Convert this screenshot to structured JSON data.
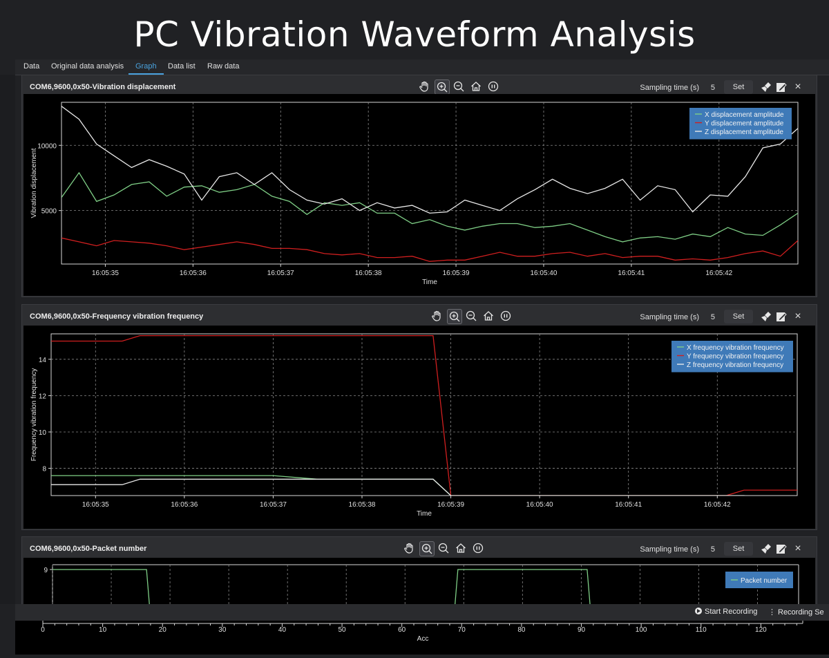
{
  "banner": {
    "title": "PC Vibration Waveform Analysis"
  },
  "tabs": [
    {
      "label": "Data"
    },
    {
      "label": "Original data analysis"
    },
    {
      "label": "Graph",
      "active": true
    },
    {
      "label": "Data list"
    },
    {
      "label": "Raw data"
    }
  ],
  "colors": {
    "accent": "#4aa3df",
    "x_series": "#7fcf86",
    "y_series": "#d11f1f",
    "z_series": "#e8e8e8",
    "legend_bg": "#3f7ab8"
  },
  "panels": [
    {
      "title": "COM6,9600,0x50-Vibration displacement",
      "sampling_label": "Sampling time (s)",
      "sampling_value": "5",
      "set_label": "Set",
      "close_label": "×"
    },
    {
      "title": "COM6,9600,0x50-Frequency vibration frequency",
      "sampling_label": "Sampling time (s)",
      "sampling_value": "5",
      "set_label": "Set",
      "close_label": "×"
    },
    {
      "title": "COM6,9600,0x50-Packet number",
      "sampling_label": "Sampling time (s)",
      "sampling_value": "5",
      "set_label": "Set",
      "close_label": "×"
    }
  ],
  "toolbar_icons": [
    "pan-hand-icon",
    "zoom-in-icon",
    "zoom-out-icon",
    "home-icon",
    "pause-icon"
  ],
  "panel_icons": [
    "brush-clear-icon",
    "edit-icon",
    "close-icon"
  ],
  "bottom_bar": {
    "start_recording": "Start Recording",
    "recording_settings": "Recording Se"
  },
  "chart_data": [
    {
      "type": "line",
      "title": "",
      "xlabel": "Time",
      "ylabel": "Vibration displacement",
      "x_ticks": [
        "16:05:35",
        "16:05:36",
        "16:05:37",
        "16:05:38",
        "16:05:39",
        "16:05:40",
        "16:05:41",
        "16:05:42"
      ],
      "y_ticks": [
        5000,
        10000
      ],
      "xlim": [
        "16:05:34.5",
        "16:05:42.9"
      ],
      "ylim": [
        900,
        13300
      ],
      "grid": true,
      "legend_position": "top-right",
      "x": [
        "16:05:34.5",
        "16:05:34.7",
        "16:05:34.9",
        "16:05:35.1",
        "16:05:35.3",
        "16:05:35.5",
        "16:05:35.7",
        "16:05:35.9",
        "16:05:36.1",
        "16:05:36.3",
        "16:05:36.5",
        "16:05:36.7",
        "16:05:36.9",
        "16:05:37.1",
        "16:05:37.3",
        "16:05:37.5",
        "16:05:37.7",
        "16:05:37.9",
        "16:05:38.1",
        "16:05:38.3",
        "16:05:38.5",
        "16:05:38.7",
        "16:05:38.9",
        "16:05:39.1",
        "16:05:39.3",
        "16:05:39.5",
        "16:05:39.7",
        "16:05:39.9",
        "16:05:40.1",
        "16:05:40.3",
        "16:05:40.5",
        "16:05:40.7",
        "16:05:40.9",
        "16:05:41.1",
        "16:05:41.3",
        "16:05:41.5",
        "16:05:41.7",
        "16:05:41.9",
        "16:05:42.1",
        "16:05:42.3",
        "16:05:42.5",
        "16:05:42.7",
        "16:05:42.9"
      ],
      "series": [
        {
          "name": "X displacement amplitude",
          "color": "#7fcf86",
          "values": [
            6000,
            7900,
            5700,
            6200,
            7000,
            7200,
            6100,
            6800,
            6900,
            6400,
            6600,
            7000,
            6100,
            5700,
            4700,
            5600,
            5400,
            5600,
            4800,
            4800,
            4000,
            4300,
            3800,
            3500,
            3800,
            4000,
            4000,
            3700,
            3800,
            4000,
            3500,
            3000,
            2600,
            2900,
            3000,
            2800,
            3200,
            3000,
            3700,
            3200,
            3100,
            3900,
            4800
          ]
        },
        {
          "name": "Y displacement amplitude",
          "color": "#d11f1f",
          "values": [
            2900,
            2600,
            2300,
            2700,
            2600,
            2500,
            2300,
            2000,
            2200,
            2400,
            2600,
            2400,
            2100,
            2100,
            2000,
            1700,
            1600,
            1700,
            1400,
            1400,
            1500,
            1100,
            1200,
            1200,
            1500,
            1800,
            1500,
            1500,
            1700,
            1800,
            1500,
            1700,
            1400,
            1500,
            1500,
            1200,
            1300,
            1200,
            1400,
            1700,
            1900,
            1500,
            2700
          ]
        },
        {
          "name": "Z displacement amplitude",
          "color": "#e8e8e8",
          "values": [
            13000,
            12000,
            10100,
            9200,
            8300,
            8900,
            8400,
            7800,
            5800,
            7600,
            7900,
            7000,
            7900,
            6600,
            5800,
            5500,
            5900,
            5000,
            5600,
            5200,
            5400,
            4800,
            4900,
            5800,
            5400,
            5000,
            5900,
            6600,
            7400,
            6700,
            6300,
            6700,
            7400,
            5800,
            6900,
            6600,
            4900,
            6200,
            6100,
            7600,
            9800,
            10100,
            11300
          ]
        }
      ]
    },
    {
      "type": "line",
      "title": "",
      "xlabel": "Time",
      "ylabel": "Frequency vibration frequency",
      "x_ticks": [
        "16:05:35",
        "16:05:36",
        "16:05:37",
        "16:05:38",
        "16:05:39",
        "16:05:40",
        "16:05:41",
        "16:05:42"
      ],
      "y_ticks": [
        8,
        10,
        12,
        14
      ],
      "xlim": [
        "16:05:34.5",
        "16:05:42.9"
      ],
      "ylim": [
        6.5,
        15.4
      ],
      "grid": true,
      "legend_position": "top-right",
      "x": [
        "16:05:34.5",
        "16:05:35.0",
        "16:05:35.3",
        "16:05:35.5",
        "16:05:35.7",
        "16:05:36.0",
        "16:05:36.5",
        "16:05:36.9",
        "16:05:37.0",
        "16:05:37.5",
        "16:05:38.0",
        "16:05:38.5",
        "16:05:38.8",
        "16:05:39.0",
        "16:05:39.5",
        "16:05:40.0",
        "16:05:41.0",
        "16:05:42.0",
        "16:05:42.1",
        "16:05:42.3",
        "16:05:42.5",
        "16:05:42.9"
      ],
      "series": [
        {
          "name": "X frequency vibration frequency",
          "color": "#7fcf86",
          "values": [
            7.6,
            7.6,
            7.6,
            7.6,
            7.6,
            7.6,
            7.6,
            7.6,
            7.6,
            7.4,
            7.4,
            7.4,
            7.4,
            6.5,
            6.5,
            6.5,
            6.5,
            6.5,
            6.5,
            6.4,
            6.3,
            6.3
          ]
        },
        {
          "name": "Y frequency vibration frequency",
          "color": "#d11f1f",
          "values": [
            15.0,
            15.0,
            15.0,
            15.3,
            15.3,
            15.3,
            15.3,
            15.3,
            15.3,
            15.3,
            15.3,
            15.3,
            15.3,
            6.5,
            6.5,
            6.5,
            6.5,
            6.5,
            6.5,
            6.8,
            6.8,
            6.8
          ]
        },
        {
          "name": "Z frequency vibration frequency",
          "color": "#e8e8e8",
          "values": [
            7.1,
            7.1,
            7.1,
            7.4,
            7.4,
            7.4,
            7.4,
            7.4,
            7.4,
            7.4,
            7.4,
            7.4,
            7.4,
            6.5,
            6.5,
            6.5,
            6.5,
            6.5,
            6.5,
            6.5,
            6.4,
            6.4
          ]
        }
      ]
    },
    {
      "type": "line",
      "title": "",
      "xlabel": "Acc",
      "ylabel": "",
      "x_ticks": [
        0,
        10,
        20,
        30,
        40,
        50,
        60,
        70,
        80,
        90,
        100,
        110,
        120
      ],
      "y_ticks": [
        9
      ],
      "xlim": [
        0,
        127
      ],
      "grid": true,
      "legend_position": "top-right",
      "x": [
        0,
        1,
        2,
        16,
        17,
        68,
        69,
        70,
        91,
        92
      ],
      "series": [
        {
          "name": "Packet number",
          "color": "#7fcf86",
          "values": [
            9,
            9,
            9,
            9,
            0,
            0,
            9,
            9,
            9,
            0
          ]
        }
      ]
    }
  ]
}
